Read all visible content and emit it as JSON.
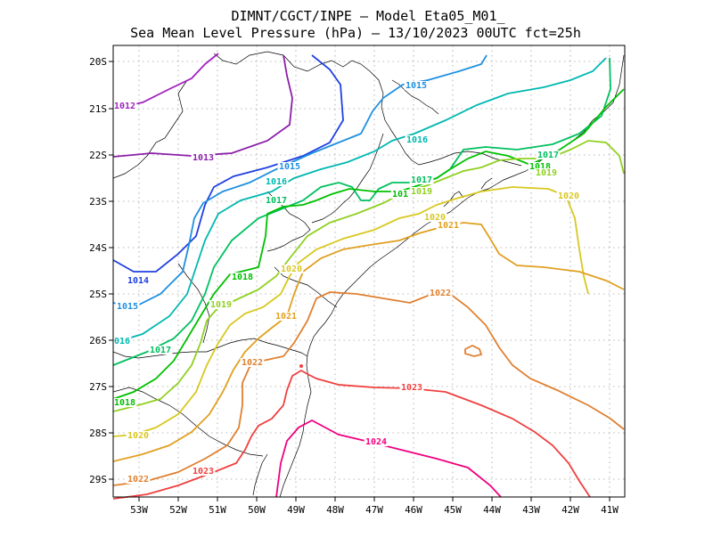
{
  "title_line1": "DIMNT/CGCT/INPE –  Model Eta05_M01_",
  "title_line2": "Sea Mean Level Pressure (hPa) – 13/10/2023 00UTC fct=25h",
  "lon_ticks": [
    "53W",
    "52W",
    "51W",
    "50W",
    "49W",
    "48W",
    "47W",
    "46W",
    "45W",
    "44W",
    "43W",
    "42W",
    "41W"
  ],
  "lat_ticks": [
    "20S",
    "21S",
    "22S",
    "23S",
    "24S",
    "25S",
    "26S",
    "27S",
    "28S",
    "29S"
  ],
  "colors": {
    "1012": "#a020c0",
    "1013": "#8a20a8",
    "1014": "#2040e0",
    "1015": "#1e90e0",
    "1016": "#00b8b0",
    "1017": "#00c060",
    "1018": "#00c000",
    "1019": "#90d020",
    "1020": "#d8c820",
    "1021": "#e0a020",
    "1022": "#e08030",
    "1023": "#f04040",
    "1024": "#f00080",
    "coast": "#000000",
    "grid": "#a0a0a0"
  },
  "contour_labels": [
    {
      "text": "1012",
      "level": "1012"
    },
    {
      "text": "1013",
      "level": "1013"
    },
    {
      "text": "1014",
      "level": "1014"
    },
    {
      "text": "1015",
      "level": "1015"
    },
    {
      "text": "1015",
      "level": "1015"
    },
    {
      "text": "1015",
      "level": "1015"
    },
    {
      "text": "016",
      "level": "1016"
    },
    {
      "text": "1016",
      "level": "1016"
    },
    {
      "text": "1016",
      "level": "1016"
    },
    {
      "text": "1017",
      "level": "1017"
    },
    {
      "text": "1017",
      "level": "1017"
    },
    {
      "text": "1017",
      "level": "1017"
    },
    {
      "text": "1017",
      "level": "1017"
    },
    {
      "text": "1018",
      "level": "1018"
    },
    {
      "text": "1018",
      "level": "1018"
    },
    {
      "text": "1018",
      "level": "1018"
    },
    {
      "text": "101",
      "level": "1018"
    },
    {
      "text": "1019",
      "level": "1019"
    },
    {
      "text": "1019",
      "level": "1019"
    },
    {
      "text": "1019",
      "level": "1019"
    },
    {
      "text": "1020",
      "level": "1020"
    },
    {
      "text": "1020",
      "level": "1020"
    },
    {
      "text": "1020",
      "level": "1020"
    },
    {
      "text": "1020",
      "level": "1020"
    },
    {
      "text": "1021",
      "level": "1021"
    },
    {
      "text": "1021",
      "level": "1021"
    },
    {
      "text": "1022",
      "level": "1022"
    },
    {
      "text": "1022",
      "level": "1022"
    },
    {
      "text": "1022",
      "level": "1022"
    },
    {
      "text": "1023",
      "level": "1023"
    },
    {
      "text": "1023",
      "level": "1023"
    },
    {
      "text": "1024",
      "level": "1024"
    }
  ]
}
